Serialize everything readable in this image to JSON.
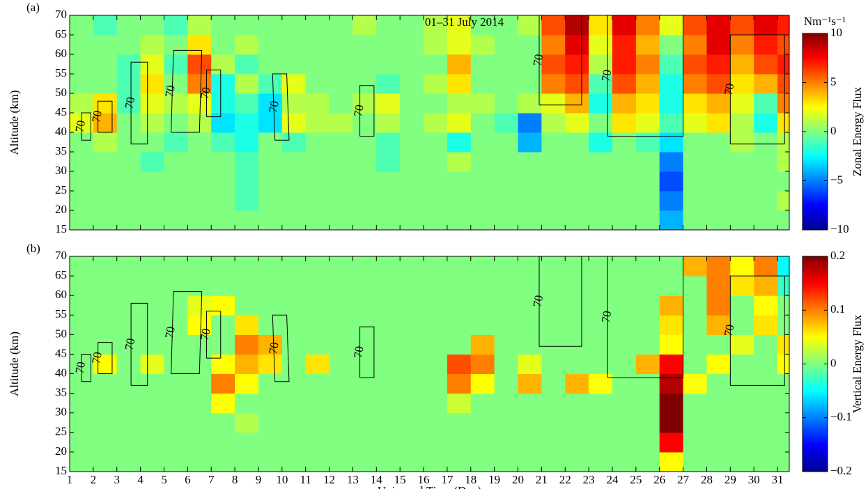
{
  "chart_data": [
    {
      "type": "heatmap",
      "panel_label": "(a)",
      "title": "01–31 July 2014",
      "ylabel": "Altitude (km)",
      "colorbar_units": "Nm⁻¹s⁻¹",
      "colorbar_label": "Zonal Energy Flux",
      "clim": [
        -10,
        10
      ],
      "cticks": [
        {
          "value": -10,
          "label": "−10"
        },
        {
          "value": -5,
          "label": "−5"
        },
        0,
        5,
        10
      ],
      "xlim": [
        1,
        31.5
      ],
      "xticks": [
        1,
        2,
        3,
        4,
        5,
        6,
        7,
        8,
        9,
        10,
        11,
        12,
        13,
        14,
        15,
        16,
        17,
        18,
        19,
        20,
        21,
        22,
        23,
        24,
        25,
        26,
        27,
        28,
        29,
        30,
        31
      ],
      "ylim": [
        15,
        70
      ],
      "yticks": [
        15,
        20,
        25,
        30,
        35,
        40,
        45,
        50,
        55,
        60,
        65,
        70
      ],
      "x": [
        1,
        2,
        3,
        4,
        5,
        6,
        7,
        8,
        9,
        10,
        11,
        12,
        13,
        14,
        15,
        16,
        17,
        18,
        19,
        20,
        21,
        22,
        23,
        24,
        25,
        26,
        27,
        28,
        29,
        30,
        31
      ],
      "y": [
        15,
        20,
        25,
        30,
        35,
        40,
        45,
        50,
        55,
        60,
        65
      ],
      "z": [
        [
          0,
          0,
          0,
          0,
          0,
          0,
          0,
          0,
          0,
          0,
          0,
          0,
          0,
          0,
          0,
          0,
          0,
          0,
          0,
          0,
          0,
          0,
          0,
          0,
          0,
          -4,
          0,
          0,
          0,
          0,
          0
        ],
        [
          0,
          0,
          0,
          0,
          0,
          0,
          0,
          -1,
          0,
          0,
          0,
          0,
          0,
          0,
          0,
          0,
          0,
          0,
          0,
          0,
          0,
          0,
          0,
          0,
          0,
          -5,
          0,
          0,
          0,
          0,
          1
        ],
        [
          0,
          0,
          0,
          0,
          0,
          0,
          0,
          -1,
          0,
          0,
          0,
          0,
          0,
          0,
          0,
          0,
          0,
          0,
          0,
          0,
          0,
          0,
          0,
          0,
          0,
          -6,
          0,
          0,
          0,
          0,
          0
        ],
        [
          0,
          0,
          0,
          -1,
          0,
          0,
          0,
          -1,
          0,
          0,
          0,
          0,
          0,
          -1,
          0,
          0,
          1,
          0,
          0,
          0,
          0,
          0,
          0,
          0,
          0,
          -5,
          0,
          0,
          0,
          0,
          1
        ],
        [
          0,
          1,
          0,
          0,
          -1,
          0,
          -1,
          -2,
          0,
          -1,
          0,
          0,
          0,
          -1,
          0,
          0,
          -2,
          0,
          0,
          -4,
          0,
          0,
          -2,
          0,
          -1,
          -3,
          0,
          0,
          1,
          0,
          1
        ],
        [
          2,
          4,
          0,
          1,
          0,
          1,
          -3,
          -2,
          -3,
          2,
          1,
          1,
          0,
          1,
          0,
          1,
          2,
          0,
          -1,
          -5,
          1,
          2,
          0,
          3,
          2,
          -1,
          2,
          3,
          1,
          -2,
          3
        ],
        [
          1,
          3,
          -1,
          2,
          1,
          2,
          -2,
          -1,
          -3,
          1,
          1,
          0,
          1,
          2,
          0,
          0,
          1,
          1,
          0,
          1,
          2,
          4,
          -2,
          4,
          3,
          -2,
          3,
          4,
          2,
          -1,
          5
        ],
        [
          0,
          0,
          -1,
          3,
          0,
          5,
          -2,
          1,
          -1,
          2,
          0,
          0,
          0,
          -1,
          0,
          1,
          3,
          0,
          0,
          0,
          5,
          6,
          -1,
          6,
          4,
          -2,
          5,
          6,
          3,
          4,
          6
        ],
        [
          0,
          0,
          -1,
          2,
          -1,
          6,
          1,
          -1,
          0,
          0,
          0,
          0,
          0,
          0,
          0,
          0,
          4,
          0,
          0,
          0,
          6,
          7,
          1,
          7,
          5,
          -1,
          6,
          7,
          4,
          6,
          7
        ],
        [
          0,
          0,
          0,
          1,
          0,
          3,
          0,
          1,
          0,
          0,
          0,
          0,
          0,
          0,
          0,
          1,
          2,
          1,
          0,
          0,
          5,
          8,
          2,
          7,
          4,
          0,
          5,
          8,
          5,
          7,
          6
        ],
        [
          0,
          -1,
          0,
          0,
          -1,
          1,
          0,
          0,
          0,
          0,
          0,
          0,
          1,
          0,
          0,
          1,
          2,
          0,
          0,
          1,
          6,
          9,
          3,
          8,
          5,
          2,
          6,
          8,
          6,
          8,
          7
        ]
      ],
      "contour_level": 70,
      "contours": [
        {
          "x": [
            1.5,
            1.9,
            1.9,
            1.5,
            1.5
          ],
          "y": [
            38,
            38,
            45,
            45,
            38
          ]
        },
        {
          "x": [
            2.2,
            2.8,
            2.8,
            2.2,
            2.2
          ],
          "y": [
            40,
            40,
            48,
            48,
            40
          ]
        },
        {
          "x": [
            3.6,
            4.3,
            4.3,
            3.6,
            3.6
          ],
          "y": [
            37,
            37,
            58,
            58,
            37
          ]
        },
        {
          "x": [
            5.3,
            6.5,
            6.6,
            5.4,
            5.3
          ],
          "y": [
            40,
            40,
            61,
            61,
            40
          ]
        },
        {
          "x": [
            6.8,
            7.4,
            7.4,
            6.8,
            6.8
          ],
          "y": [
            44,
            44,
            56,
            56,
            44
          ]
        },
        {
          "x": [
            9.7,
            10.3,
            10.2,
            9.6,
            9.7
          ],
          "y": [
            38,
            38,
            55,
            55,
            38
          ]
        },
        {
          "x": [
            13.3,
            13.9,
            13.9,
            13.3,
            13.3
          ],
          "y": [
            39,
            39,
            52,
            52,
            39
          ]
        },
        {
          "x": [
            20.9,
            22.7,
            22.7,
            20.9,
            20.9
          ],
          "y": [
            47,
            47,
            70,
            70,
            47
          ]
        },
        {
          "x": [
            23.8,
            27,
            27,
            23.8,
            23.8
          ],
          "y": [
            39,
            39,
            70,
            70,
            39
          ]
        },
        {
          "x": [
            29,
            31.3,
            31.3,
            29,
            29
          ],
          "y": [
            37,
            37,
            65,
            65,
            37
          ]
        }
      ]
    },
    {
      "type": "heatmap",
      "panel_label": "(b)",
      "ylabel": "Altitude (km)",
      "xlabel": "Universal Time (Day)",
      "colorbar_label": "Vertical Energy Flux",
      "clim": [
        -0.2,
        0.2
      ],
      "cticks": [
        {
          "value": -0.2,
          "label": "−0.2"
        },
        {
          "value": -0.1,
          "label": "−0.1"
        },
        0,
        0.1,
        0.2
      ],
      "xlim": [
        1,
        31.5
      ],
      "xticks": [
        1,
        2,
        3,
        4,
        5,
        6,
        7,
        8,
        9,
        10,
        11,
        12,
        13,
        14,
        15,
        16,
        17,
        18,
        19,
        20,
        21,
        22,
        23,
        24,
        25,
        26,
        27,
        28,
        29,
        30,
        31
      ],
      "ylim": [
        15,
        70
      ],
      "yticks": [
        15,
        20,
        25,
        30,
        35,
        40,
        45,
        50,
        55,
        60,
        65,
        70
      ],
      "x": [
        1,
        2,
        3,
        4,
        5,
        6,
        7,
        8,
        9,
        10,
        11,
        12,
        13,
        14,
        15,
        16,
        17,
        18,
        19,
        20,
        21,
        22,
        23,
        24,
        25,
        26,
        27,
        28,
        29,
        30,
        31
      ],
      "y": [
        15,
        20,
        25,
        30,
        35,
        40,
        45,
        50,
        55,
        60,
        65
      ],
      "z": [
        [
          0,
          0,
          0,
          0,
          0,
          0,
          0,
          0,
          0,
          0,
          0,
          0,
          0,
          0,
          0,
          0,
          0,
          0,
          0,
          0,
          0,
          0,
          0,
          0,
          0,
          0.05,
          0,
          0,
          0,
          0,
          0
        ],
        [
          0,
          0,
          0,
          0,
          0,
          0,
          0,
          0,
          0,
          0,
          0,
          0,
          0,
          0,
          0,
          0,
          0,
          0,
          0,
          0,
          0,
          0,
          0,
          0,
          0,
          0.15,
          0,
          0,
          0,
          0,
          0
        ],
        [
          0,
          0,
          0,
          0,
          0,
          0,
          0,
          0.02,
          0,
          0,
          0,
          0,
          0,
          0,
          0,
          0,
          0,
          0,
          0,
          0,
          0,
          0,
          0,
          0,
          0,
          0.2,
          0,
          0,
          0,
          0,
          0
        ],
        [
          0,
          0,
          0,
          0,
          0,
          0,
          0.05,
          0,
          0,
          0,
          0,
          0,
          0,
          0,
          0,
          0,
          0.03,
          0,
          0,
          0,
          0,
          0,
          0,
          0,
          0,
          0.2,
          0,
          0,
          0,
          0,
          0
        ],
        [
          0,
          0,
          0,
          0,
          0,
          0,
          0.1,
          0.05,
          0,
          0,
          0,
          0,
          0,
          0,
          0,
          0,
          0.1,
          0.05,
          0,
          0.08,
          0,
          0.08,
          0.05,
          0,
          0,
          0.18,
          0.05,
          0,
          0,
          0,
          0
        ],
        [
          0,
          0.05,
          0,
          0.04,
          0,
          0,
          0.05,
          0.08,
          0.06,
          0,
          0.06,
          0,
          0,
          0,
          0,
          0,
          0.12,
          0.1,
          0,
          0.04,
          0,
          0,
          0,
          0,
          0.08,
          0.15,
          0,
          0.05,
          0,
          0,
          0.05
        ],
        [
          0,
          0,
          0,
          0,
          0,
          0,
          0,
          0.1,
          0.08,
          0,
          0,
          0,
          0,
          0,
          0,
          0,
          0,
          0.08,
          0,
          0,
          0,
          0,
          0,
          0,
          0,
          0.05,
          0,
          0,
          0.04,
          0,
          0.06
        ],
        [
          0,
          0,
          0,
          0,
          0,
          0.05,
          0,
          0.06,
          0,
          0,
          0,
          0,
          0,
          0,
          0,
          0,
          0,
          0,
          0,
          0,
          0,
          0,
          0,
          0,
          0,
          0.06,
          0,
          0.08,
          0,
          0.06,
          0
        ],
        [
          0,
          0,
          0,
          0,
          0,
          0.04,
          0.05,
          0,
          0,
          0,
          0,
          0,
          0,
          0,
          0,
          0,
          0,
          0,
          0,
          0,
          0,
          0,
          0,
          0,
          0,
          0.08,
          0,
          0.1,
          0,
          0.05,
          0
        ],
        [
          0,
          0,
          0,
          0,
          0,
          0,
          0,
          0,
          0,
          0,
          0,
          0,
          0,
          0,
          0,
          0,
          0,
          0,
          0,
          0,
          0,
          0,
          0,
          0,
          0,
          0,
          0,
          0.1,
          0.06,
          0.08,
          -0.03
        ],
        [
          0,
          0,
          0,
          0,
          0,
          0,
          0,
          0,
          0,
          0,
          0,
          0,
          0,
          0,
          0,
          0,
          0,
          0,
          0,
          0,
          0,
          0,
          0,
          0,
          0,
          0,
          0.08,
          0.1,
          0.05,
          0.1,
          -0.05
        ]
      ],
      "contour_level": 70,
      "contours": [
        {
          "x": [
            1.5,
            1.9,
            1.9,
            1.5,
            1.5
          ],
          "y": [
            38,
            38,
            45,
            45,
            38
          ]
        },
        {
          "x": [
            2.2,
            2.8,
            2.8,
            2.2,
            2.2
          ],
          "y": [
            40,
            40,
            48,
            48,
            40
          ]
        },
        {
          "x": [
            3.6,
            4.3,
            4.3,
            3.6,
            3.6
          ],
          "y": [
            37,
            37,
            58,
            58,
            37
          ]
        },
        {
          "x": [
            5.3,
            6.5,
            6.6,
            5.4,
            5.3
          ],
          "y": [
            40,
            40,
            61,
            61,
            40
          ]
        },
        {
          "x": [
            6.8,
            7.4,
            7.4,
            6.8,
            6.8
          ],
          "y": [
            44,
            44,
            56,
            56,
            44
          ]
        },
        {
          "x": [
            9.7,
            10.3,
            10.2,
            9.6,
            9.7
          ],
          "y": [
            38,
            38,
            55,
            55,
            38
          ]
        },
        {
          "x": [
            13.3,
            13.9,
            13.9,
            13.3,
            13.3
          ],
          "y": [
            39,
            39,
            52,
            52,
            39
          ]
        },
        {
          "x": [
            20.9,
            22.7,
            22.7,
            20.9,
            20.9
          ],
          "y": [
            47,
            47,
            70,
            70,
            47
          ]
        },
        {
          "x": [
            23.8,
            27,
            27,
            23.8,
            23.8
          ],
          "y": [
            39,
            39,
            70,
            70,
            39
          ]
        },
        {
          "x": [
            29,
            31.3,
            31.3,
            29,
            29
          ],
          "y": [
            37,
            37,
            65,
            65,
            37
          ]
        }
      ]
    }
  ]
}
